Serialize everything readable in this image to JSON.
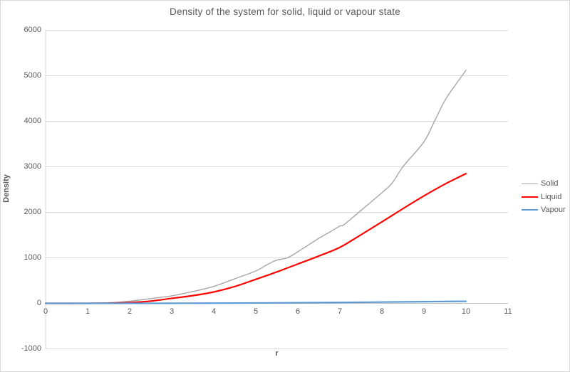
{
  "chart": {
    "title": "Density of the system for solid, liquid or vapour state",
    "x_axis_label": "r",
    "y_axis_label": "Density"
  },
  "colors": {
    "gridline": "#d9d9d9",
    "zero_axis_line": "#bfbfbf",
    "axis_text": "#595959",
    "frame_border": "#d9d9d9"
  },
  "chart_data": {
    "type": "line",
    "title": "Density of the system for solid, liquid or vapour state",
    "xlabel": "r",
    "ylabel": "Density",
    "xlim": [
      0,
      11
    ],
    "ylim": [
      -1000,
      6000
    ],
    "x_ticks": [
      0,
      1,
      2,
      3,
      4,
      5,
      6,
      7,
      8,
      9,
      10,
      11
    ],
    "y_ticks": [
      -1000,
      0,
      1000,
      2000,
      3000,
      4000,
      5000,
      6000
    ],
    "grid": "horizontal",
    "legend_position": "right",
    "series": [
      {
        "name": "Solid",
        "color": "#a6a6a6",
        "stroke_width": 1.4,
        "x": [
          0,
          0.5,
          1,
          1.5,
          2,
          2.5,
          3,
          3.5,
          4,
          4.5,
          5,
          5.25,
          5.5,
          5.75,
          6,
          6.5,
          6.75,
          7,
          7.1,
          7.5,
          8,
          8.25,
          8.5,
          9,
          9.25,
          9.5,
          9.75,
          10
        ],
        "y": [
          0,
          0,
          3,
          15,
          48,
          105,
          165,
          260,
          372,
          540,
          711,
          840,
          950,
          1000,
          1133,
          1430,
          1560,
          1700,
          1730,
          2040,
          2430,
          2650,
          3000,
          3550,
          4000,
          4460,
          4800,
          5120
        ]
      },
      {
        "name": "Liquid",
        "color": "#ff0000",
        "stroke_width": 2.2,
        "x": [
          0,
          0.5,
          1,
          1.5,
          2,
          2.5,
          3,
          3.5,
          4,
          4.5,
          5,
          5.5,
          6,
          6.5,
          7,
          7.5,
          8,
          8.5,
          9,
          9.5,
          10
        ],
        "y": [
          0,
          0,
          1,
          5,
          18,
          50,
          110,
          170,
          250,
          370,
          528,
          690,
          865,
          1040,
          1230,
          1505,
          1790,
          2080,
          2360,
          2620,
          2850
        ]
      },
      {
        "name": "Vapour",
        "color": "#5b9bd5",
        "stroke_width": 2.2,
        "x": [
          0,
          1,
          2,
          3,
          4,
          5,
          6,
          7,
          8,
          9,
          10
        ],
        "y": [
          0,
          0,
          1,
          2,
          5,
          9,
          14,
          20,
          28,
          37,
          46
        ]
      }
    ]
  }
}
